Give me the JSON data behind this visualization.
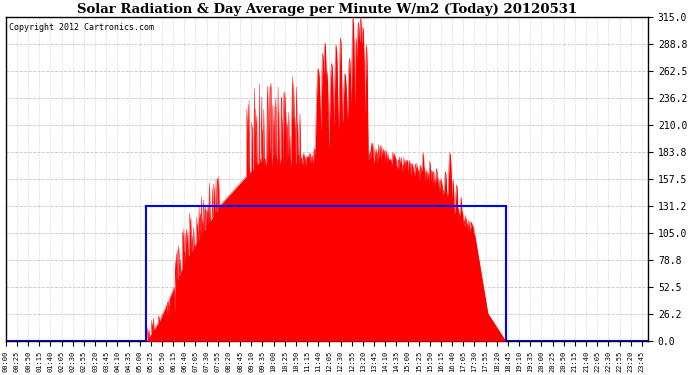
{
  "title": "Solar Radiation & Day Average per Minute W/m2 (Today) 20120531",
  "copyright_text": "Copyright 2012 Cartronics.com",
  "bg_color": "#ffffff",
  "plot_bg_color": "#ffffff",
  "bar_color": "#ff0000",
  "line_color": "#0000ff",
  "grid_color": "#c0c0c0",
  "ylim": [
    0.0,
    315.0
  ],
  "yticks": [
    0.0,
    26.2,
    52.5,
    78.8,
    105.0,
    131.2,
    157.5,
    183.8,
    210.0,
    236.2,
    262.5,
    288.8,
    315.0
  ],
  "n_minutes": 1440,
  "sunrise_minute": 315,
  "sunset_minute": 1120,
  "day_average": 131.2,
  "peak_value": 315.0
}
